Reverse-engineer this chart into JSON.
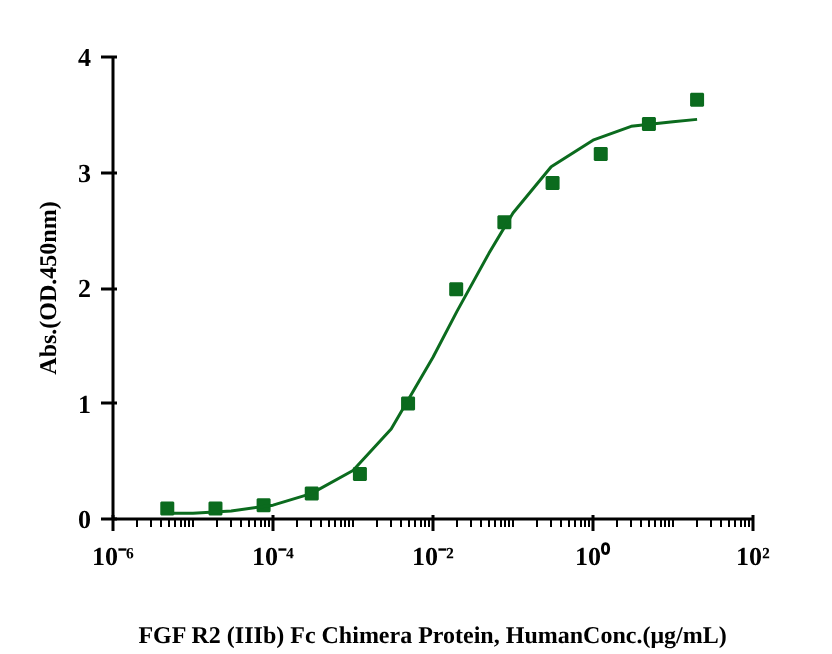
{
  "chart_data": {
    "type": "scatter",
    "xlabel": "FGF R2 (IIIb) Fc Chimera Protein, HumanConc.(μg/mL)",
    "ylabel": "Abs.(OD.450nm)",
    "log": "x",
    "xlim": [
      1e-06,
      100
    ],
    "xticks": [
      {
        "value": 1e-06,
        "label": "10⁻⁶"
      },
      {
        "value": 0.0001,
        "label": "10⁻⁴"
      },
      {
        "value": 0.01,
        "label": "10⁻²"
      },
      {
        "value": 1,
        "label": "10⁰"
      },
      {
        "value": 100,
        "label": "10²"
      }
    ],
    "ylim": [
      0,
      4
    ],
    "yticks": [
      0,
      1,
      2,
      3,
      4
    ],
    "grid": false,
    "series": [
      {
        "marker": "square",
        "color": "#0b6b1e",
        "x": [
          4.77e-06,
          1.91e-05,
          7.63e-05,
          0.000305,
          0.00122,
          0.00488,
          0.0195,
          0.078,
          0.3125,
          1.25,
          5,
          20
        ],
        "values": [
          0.09,
          0.09,
          0.12,
          0.22,
          0.39,
          1.0,
          1.99,
          2.57,
          2.91,
          3.16,
          3.42,
          3.63
        ]
      },
      {
        "type": "line",
        "line_style": "solid",
        "color": "#0b6b1e",
        "x": [
          5e-06,
          1e-05,
          3e-05,
          0.0001,
          0.0003,
          0.001,
          0.003,
          0.01,
          0.02,
          0.05,
          0.1,
          0.3,
          1,
          3,
          10,
          20
        ],
        "values": [
          0.05,
          0.05,
          0.07,
          0.12,
          0.22,
          0.42,
          0.78,
          1.4,
          1.8,
          2.3,
          2.65,
          3.05,
          3.28,
          3.4,
          3.44,
          3.46
        ]
      }
    ]
  }
}
